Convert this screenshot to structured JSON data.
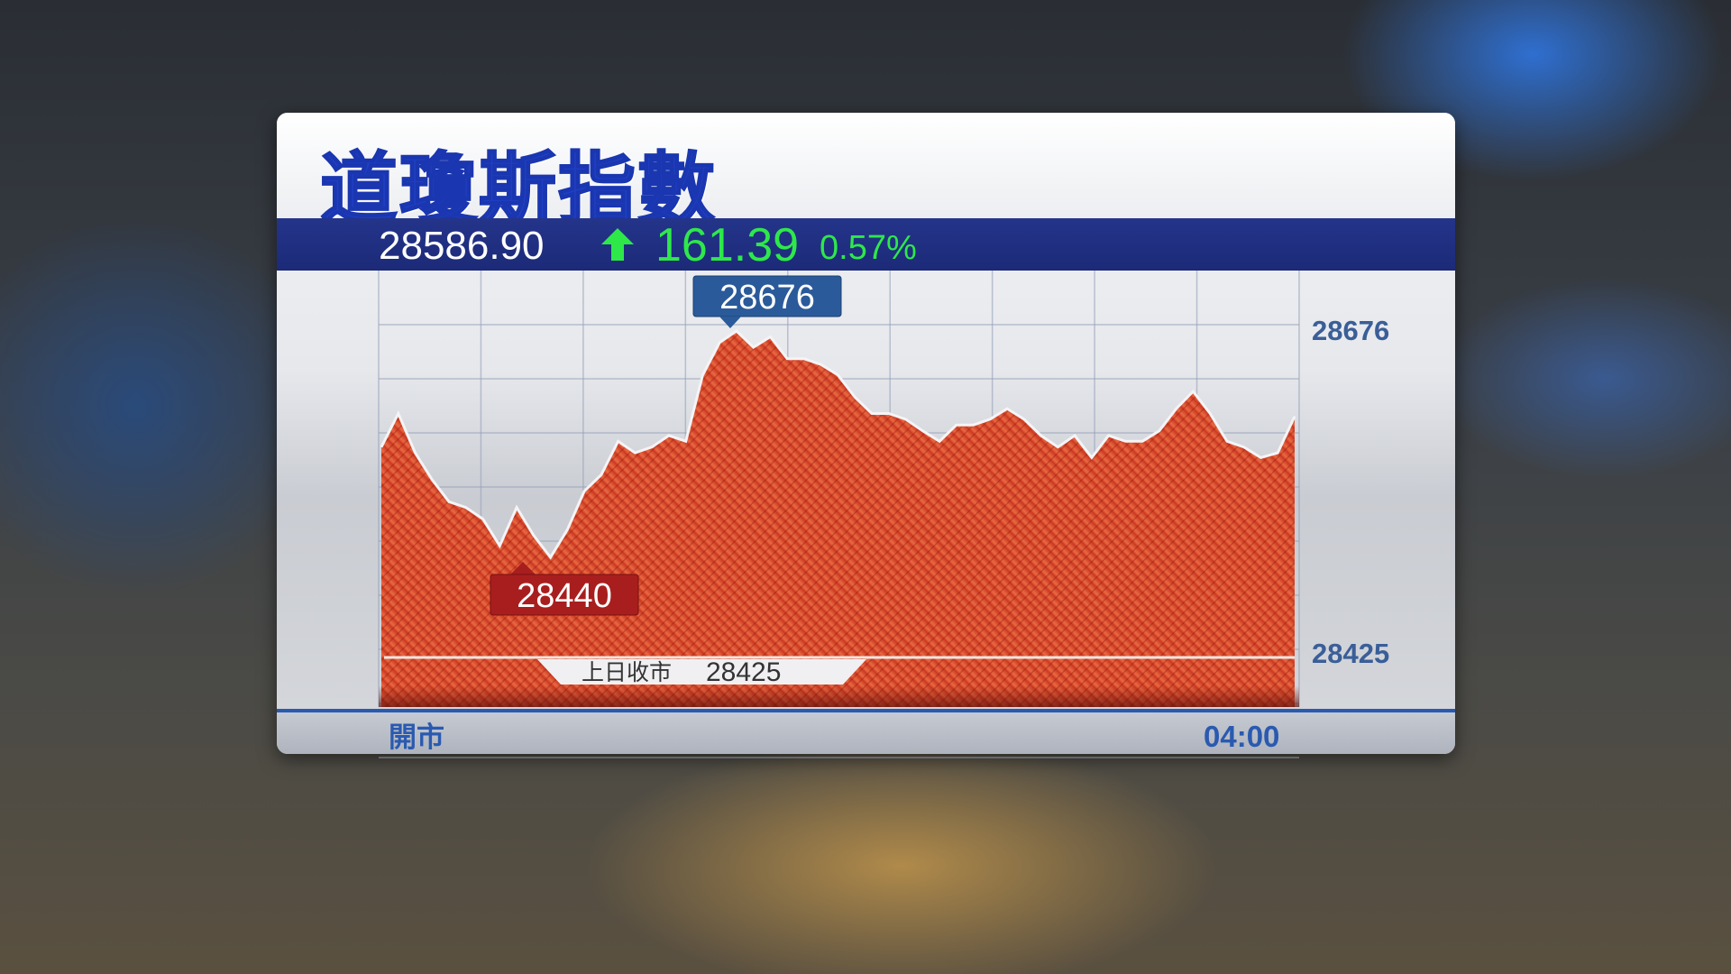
{
  "title": "道瓊斯指數",
  "quote": {
    "last": "28586.90",
    "direction": "up",
    "change": "161.39",
    "change_pct": "0.57%",
    "up_color": "#2ee84a"
  },
  "chart_data": {
    "type": "area",
    "title": "道瓊斯指數",
    "x_labels": [
      "開市",
      "04:00"
    ],
    "y_tick_labels": [
      "28676",
      "28425"
    ],
    "high": 28676,
    "low": 28440,
    "prev_close": 28425,
    "prev_close_label": "上日收市",
    "values": [
      28555,
      28590,
      28549,
      28521,
      28498,
      28492,
      28480,
      28452,
      28492,
      28463,
      28440,
      28469,
      28509,
      28526,
      28561,
      28549,
      28555,
      28567,
      28561,
      28630,
      28664,
      28676,
      28659,
      28670,
      28647,
      28647,
      28641,
      28630,
      28607,
      28590,
      28590,
      28584,
      28572,
      28561,
      28578,
      28578,
      28584,
      28595,
      28584,
      28567,
      28555,
      28567,
      28544,
      28567,
      28561,
      28561,
      28572,
      28595,
      28613,
      28590,
      28561,
      28555,
      28544,
      28549,
      28587
    ],
    "grid": true,
    "fill_color": "#d8452a",
    "high_label_color": "#2a5a9a",
    "low_label_color": "#a81e1e"
  }
}
